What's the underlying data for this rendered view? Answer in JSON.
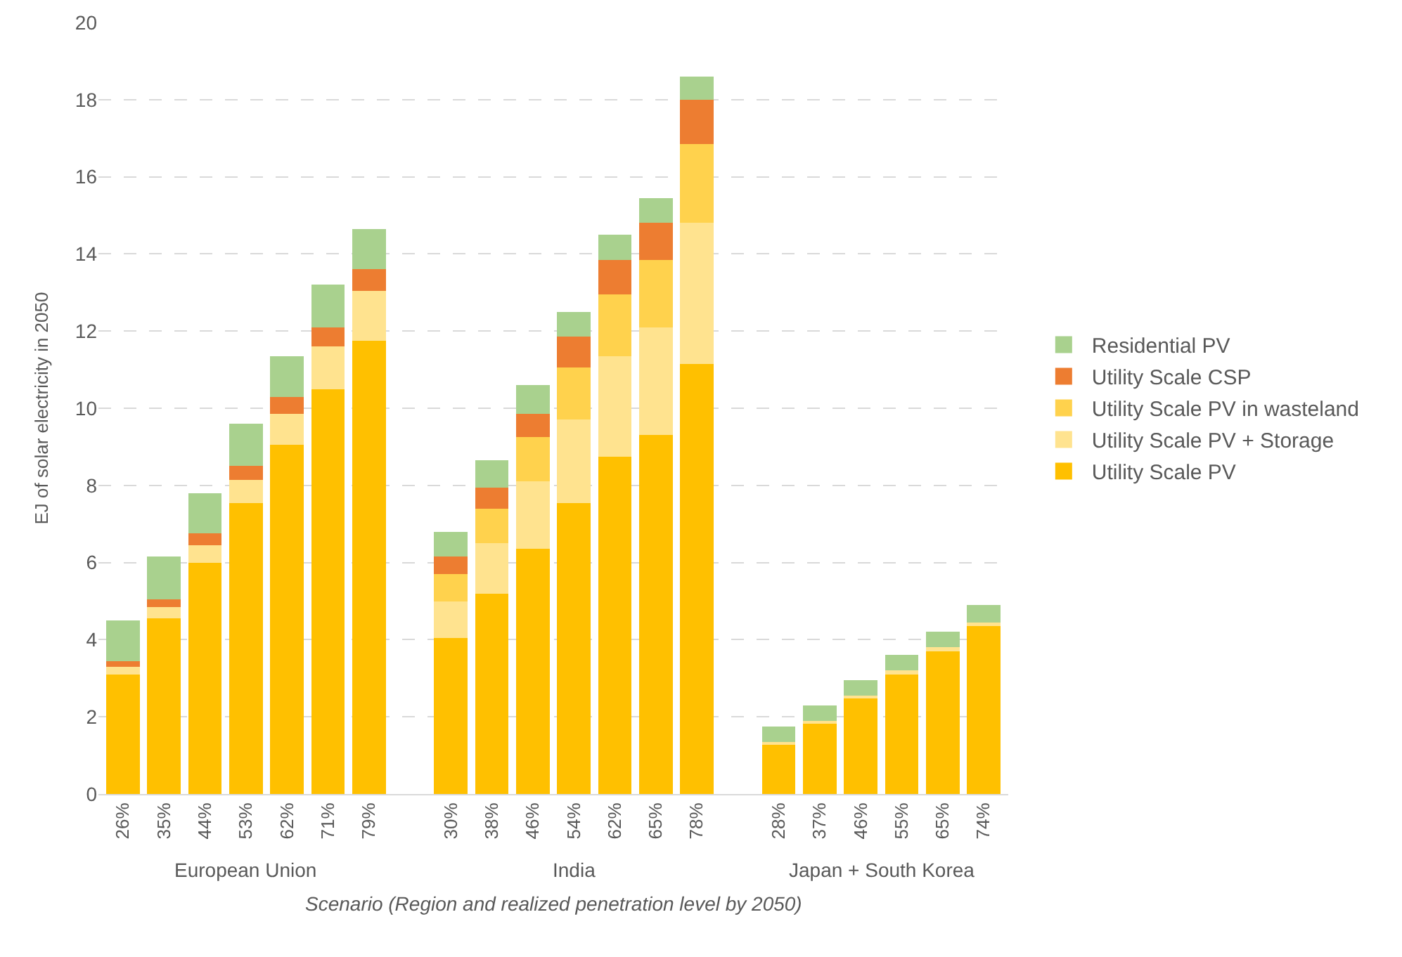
{
  "chart_data": {
    "type": "bar",
    "stacked": true,
    "ylabel": "EJ of solar electricity in 2050",
    "xlabel": "Scenario (Region and realized penetration level by 2050)",
    "categories": [
      "26%",
      "35%",
      "44%",
      "53%",
      "62%",
      "71%",
      "79%",
      null,
      "30%",
      "38%",
      "46%",
      "54%",
      "62%",
      "65%",
      "78%",
      null,
      "28%",
      "37%",
      "46%",
      "55%",
      "65%",
      "74%"
    ],
    "annotations": [
      "European Union",
      "India",
      "Japan + South Korea"
    ],
    "ylim": [
      0,
      20
    ],
    "yticks": [
      0,
      2,
      4,
      6,
      8,
      10,
      12,
      14,
      16,
      18,
      20
    ],
    "grid": "y",
    "legend": "right",
    "series": [
      {
        "name": "Utility Scale PV",
        "color": "#ffc000",
        "values": [
          3.1,
          4.55,
          6.0,
          7.55,
          9.05,
          10.5,
          11.75,
          null,
          4.05,
          5.2,
          6.35,
          7.55,
          8.75,
          9.3,
          11.15,
          null,
          1.3,
          1.85,
          2.5,
          3.1,
          3.7,
          4.35
        ]
      },
      {
        "name": "Utility Scale PV + Storage",
        "color": "#ffe38f",
        "values": [
          0.2,
          0.3,
          0.45,
          0.6,
          0.8,
          1.1,
          1.3,
          null,
          0.95,
          1.3,
          1.75,
          2.15,
          2.6,
          2.8,
          3.65,
          null,
          0.05,
          0.05,
          0.05,
          0.1,
          0.1,
          0.1
        ]
      },
      {
        "name": "Utility Scale PV in wasteland",
        "color": "#ffd24d",
        "values": [
          0,
          0,
          0,
          0,
          0,
          0,
          0,
          null,
          0.7,
          0.9,
          1.15,
          1.35,
          1.6,
          1.75,
          2.05,
          null,
          0,
          0,
          0,
          0,
          0,
          0
        ]
      },
      {
        "name": "Utility Scale CSP",
        "color": "#ed7d31",
        "values": [
          0.15,
          0.2,
          0.3,
          0.35,
          0.45,
          0.5,
          0.55,
          null,
          0.45,
          0.55,
          0.6,
          0.8,
          0.9,
          0.95,
          1.15,
          null,
          0,
          0,
          0,
          0,
          0,
          0
        ]
      },
      {
        "name": "Residential PV",
        "color": "#a9d18e",
        "values": [
          1.05,
          1.1,
          1.05,
          1.1,
          1.05,
          1.1,
          1.05,
          null,
          0.65,
          0.7,
          0.75,
          0.65,
          0.65,
          0.65,
          0.6,
          null,
          0.4,
          0.4,
          0.4,
          0.4,
          0.4,
          0.45
        ]
      }
    ]
  }
}
